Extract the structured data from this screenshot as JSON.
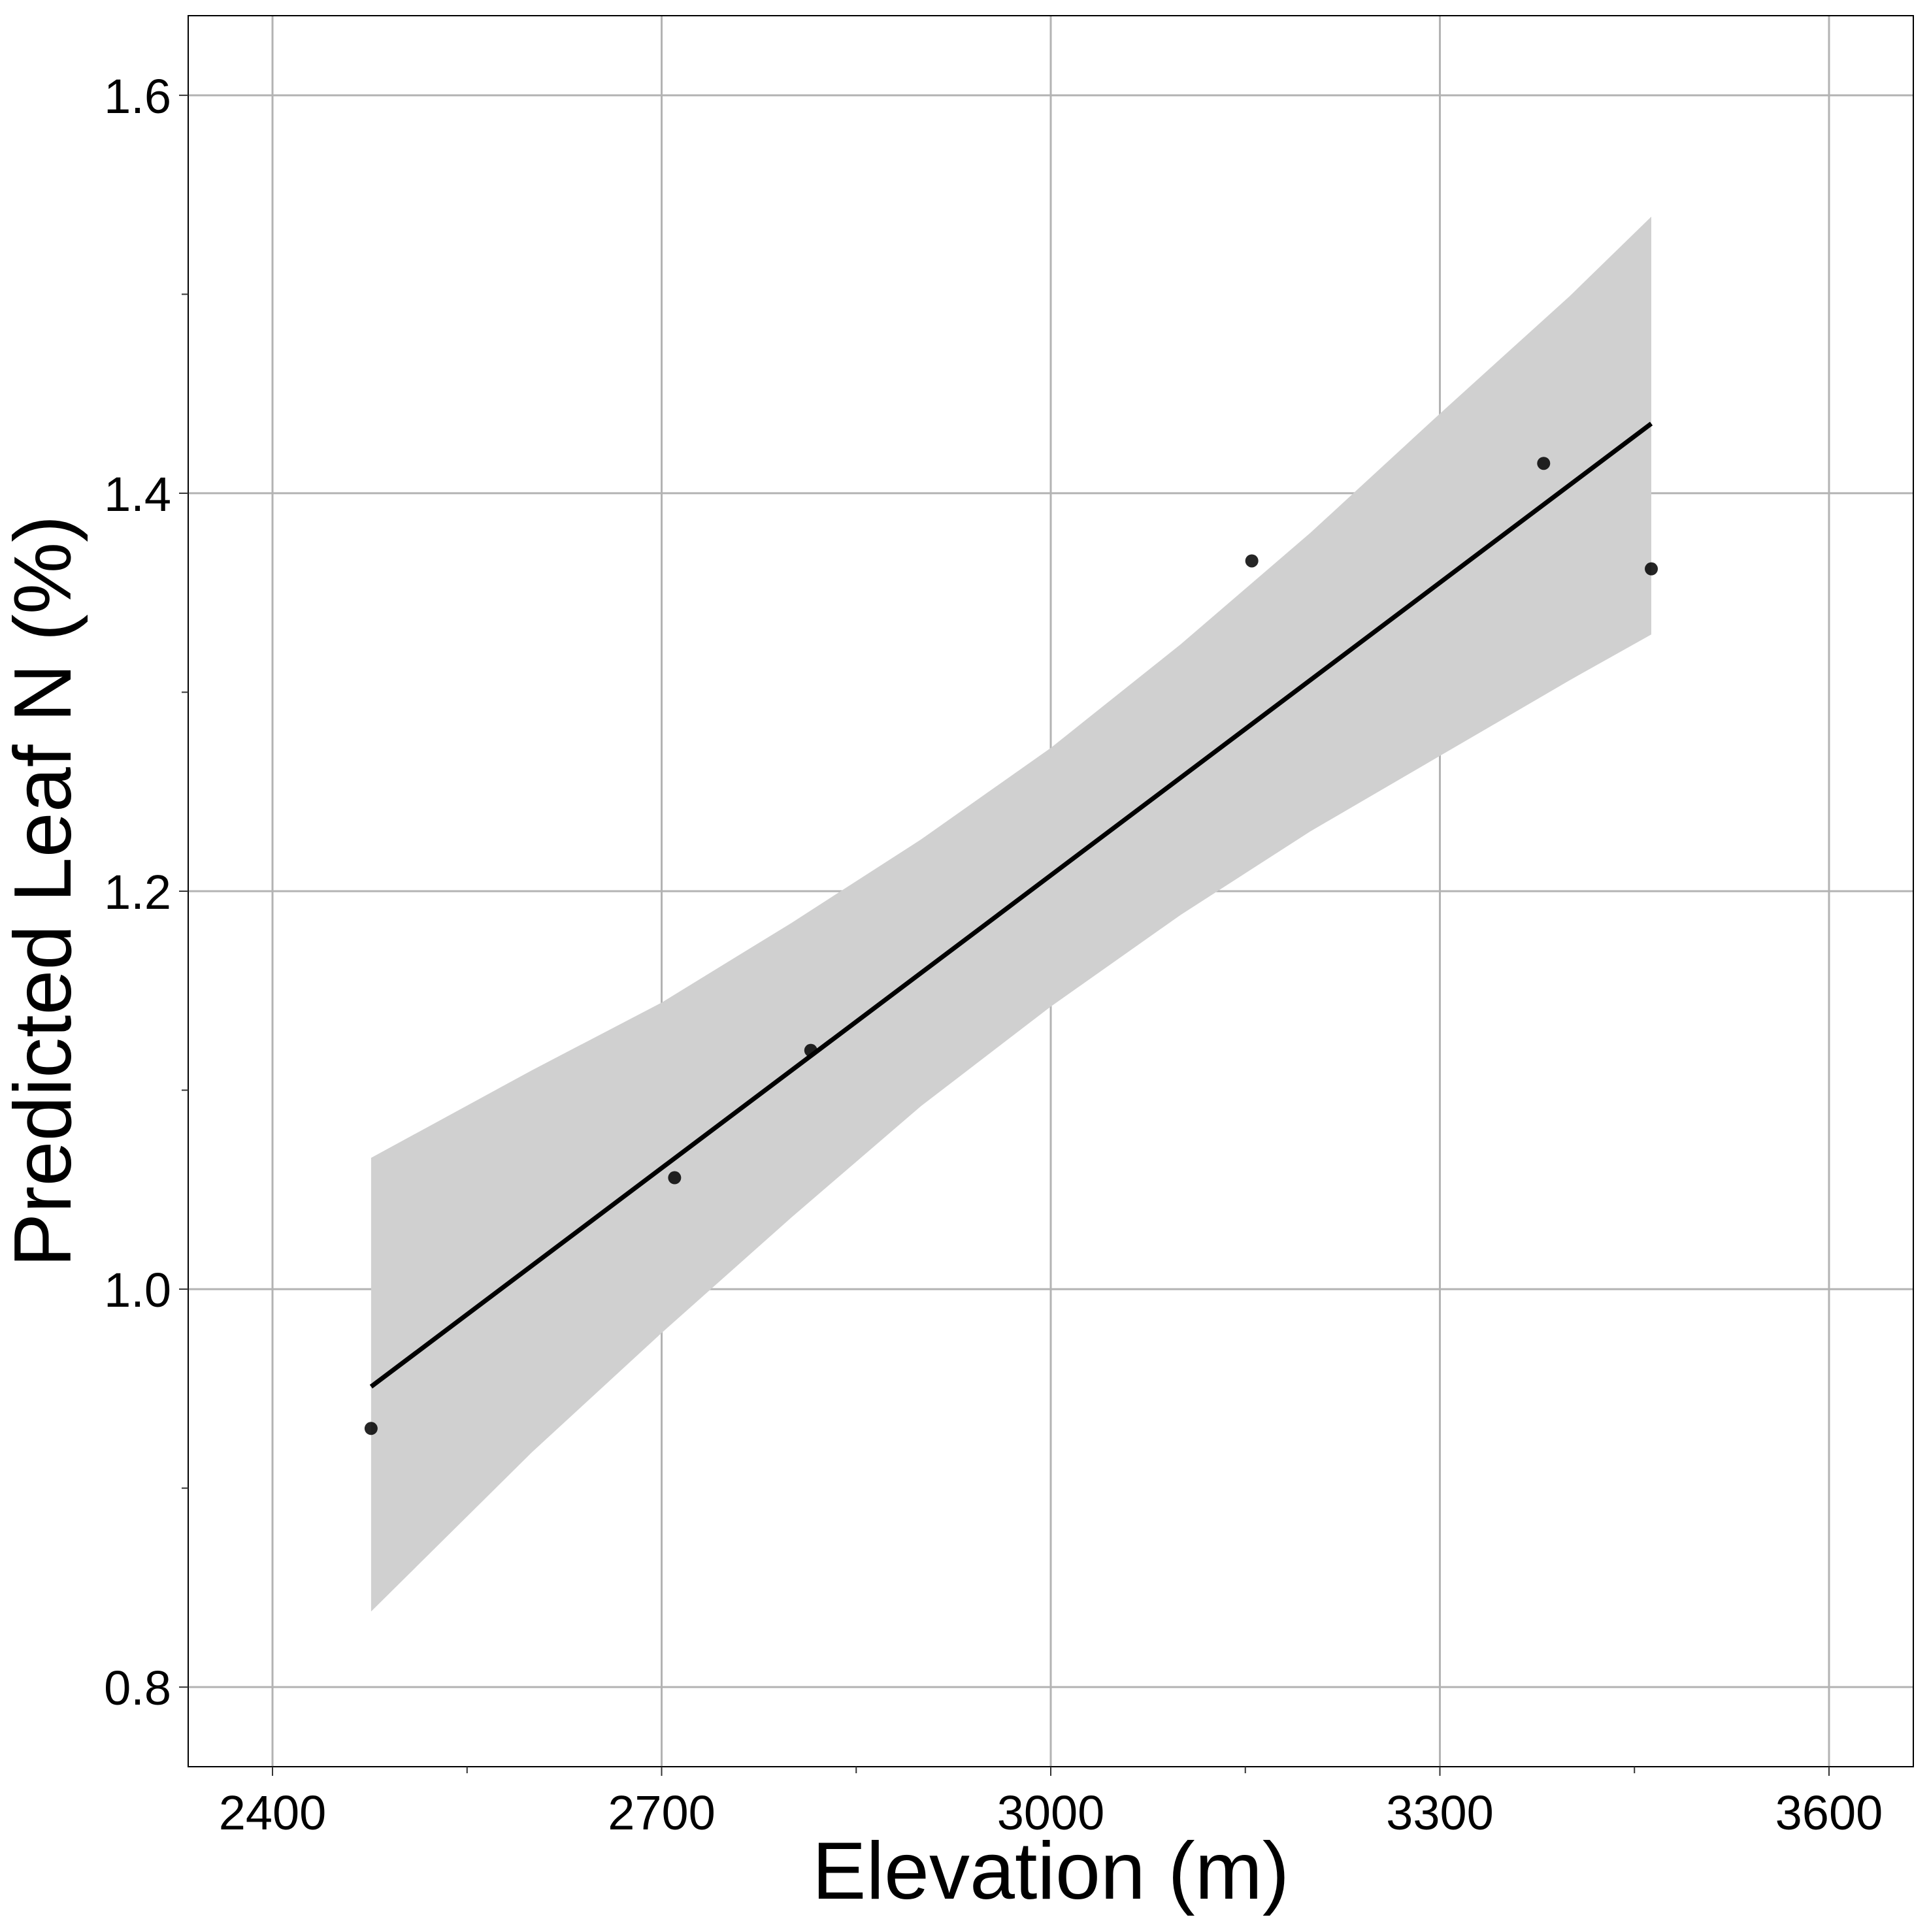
{
  "chart_data": {
    "type": "scatter",
    "xlabel": "Elevation (m)",
    "ylabel": "Predicted Leaf N (%)",
    "xlim": [
      2335,
      3665
    ],
    "ylim": [
      0.76,
      1.64
    ],
    "x_ticks": [
      2400,
      2700,
      3000,
      3300,
      3600
    ],
    "x_tick_labels": [
      "2400",
      "2700",
      "3000",
      "3300",
      "3600"
    ],
    "x_minor_ticks": [
      2550,
      2850,
      3150,
      3450
    ],
    "y_ticks": [
      0.8,
      1.0,
      1.2,
      1.4,
      1.6
    ],
    "y_tick_labels": [
      "0.8",
      "1.0",
      "1.2",
      "1.4",
      "1.6"
    ],
    "y_minor_ticks": [
      0.9,
      1.1,
      1.3,
      1.5
    ],
    "grid": true,
    "points": [
      {
        "x": 2476,
        "y": 0.93
      },
      {
        "x": 2710,
        "y": 1.056
      },
      {
        "x": 2815,
        "y": 1.12
      },
      {
        "x": 3155,
        "y": 1.366
      },
      {
        "x": 3380,
        "y": 1.415
      },
      {
        "x": 3463,
        "y": 1.362
      }
    ],
    "fit_line": {
      "x": [
        2476,
        3463
      ],
      "y": [
        0.951,
        1.435
      ]
    },
    "confidence_band": {
      "x": [
        2476,
        2600,
        2700,
        2800,
        2900,
        3000,
        3100,
        3200,
        3300,
        3400,
        3463
      ],
      "upper": [
        1.066,
        1.11,
        1.144,
        1.184,
        1.226,
        1.272,
        1.324,
        1.38,
        1.44,
        1.499,
        1.539
      ],
      "lower": [
        0.838,
        0.918,
        0.978,
        1.036,
        1.092,
        1.142,
        1.188,
        1.23,
        1.268,
        1.306,
        1.329
      ]
    },
    "colors": {
      "background": "#ffffff",
      "grid": "#b3b3b3",
      "band": "#d0d0d0",
      "line": "#000000",
      "points": "#000000",
      "frame": "#000000"
    }
  }
}
